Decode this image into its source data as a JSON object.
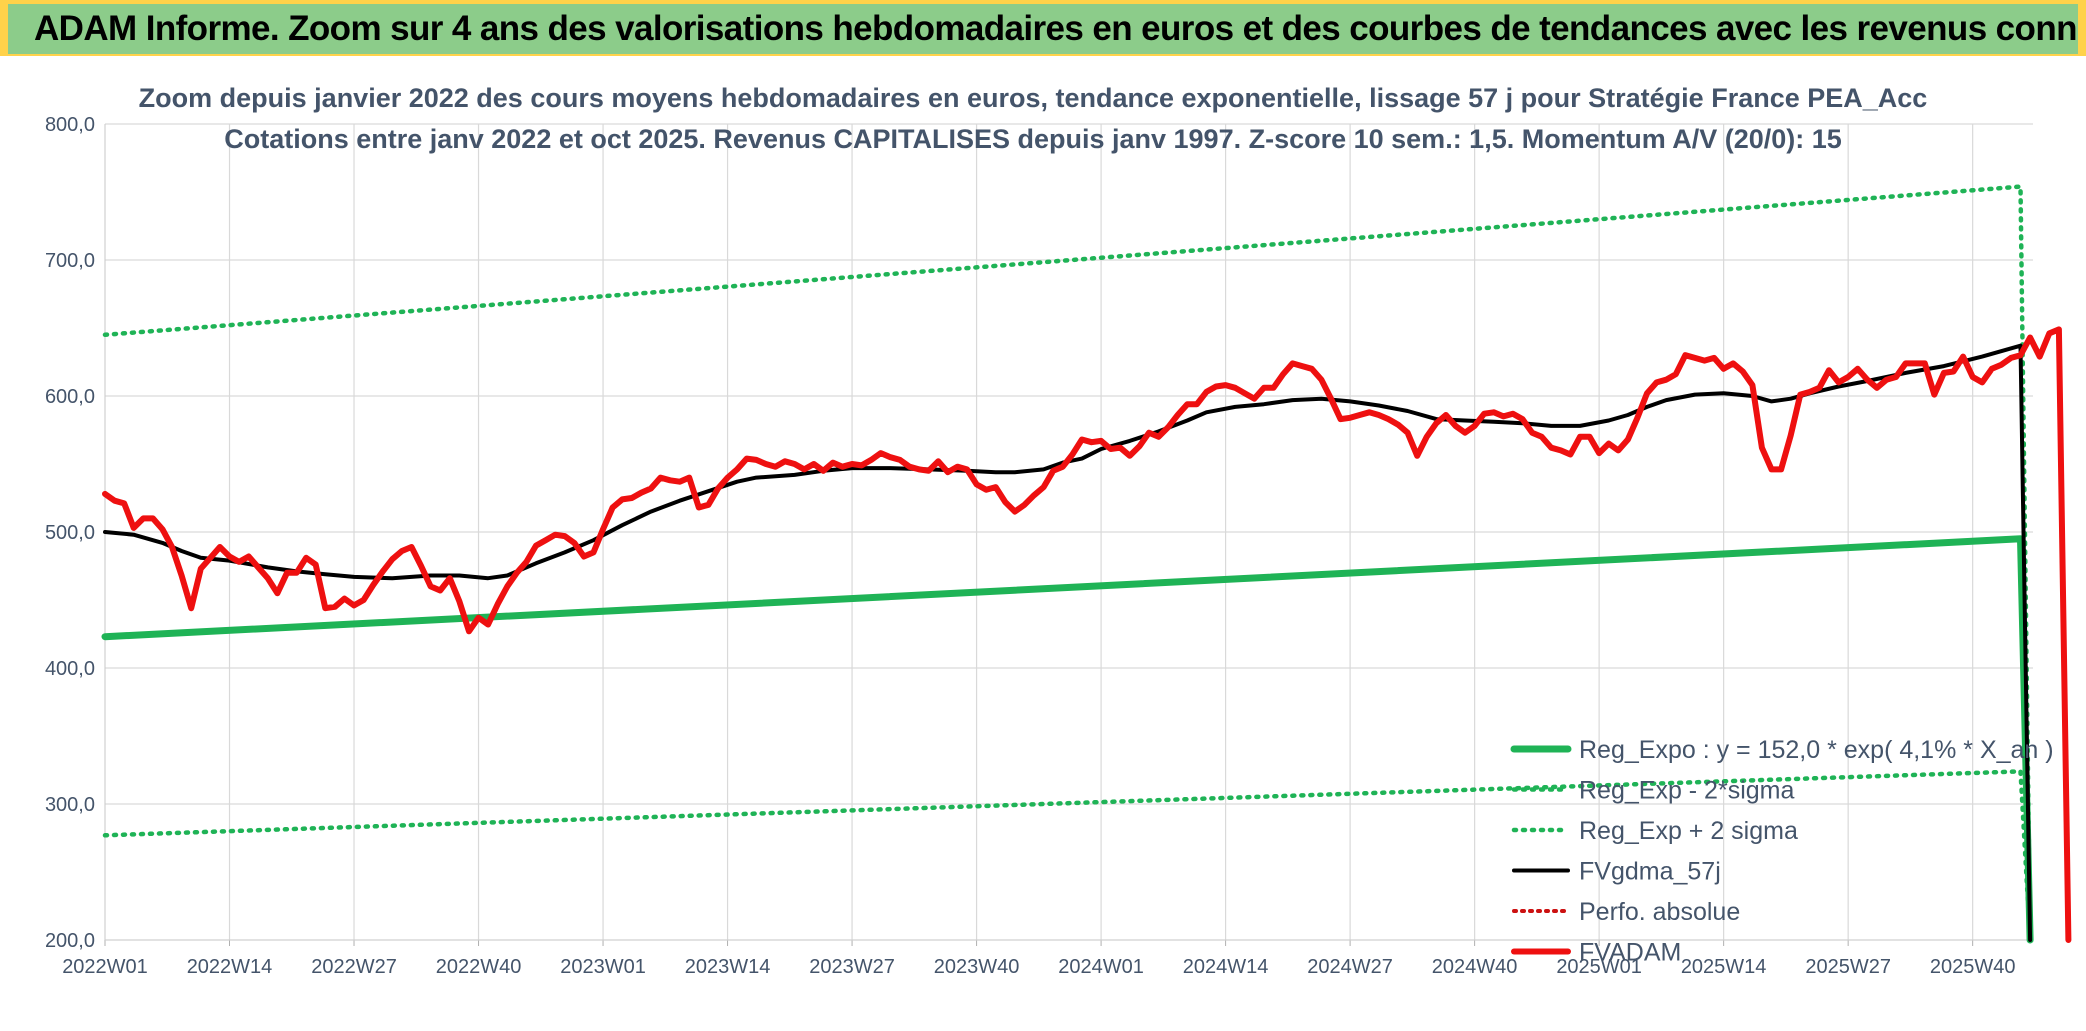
{
  "header": {
    "title": "ADAM Informe. Zoom sur 4 ans des valorisations hebdomadaires en euros et des courbes de tendances avec les revenus connus capitalisés"
  },
  "colors": {
    "header_bg": "#8ccc8a",
    "regression": "#1fb356",
    "band": "#1fb356",
    "moving_average": "#000000",
    "price": "#ee1010",
    "perf_absolue": "#cc1111",
    "gridline": "#d9d9d9",
    "text": "#44546a"
  },
  "chart_data": {
    "type": "line",
    "title": [
      "Zoom depuis janvier 2022 des cours moyens hebdomadaires en euros, tendance exponentielle, lissage 57 j pour Stratégie France PEA_Acc",
      "Cotations entre janv 2022 et oct 2025. Revenus CAPITALISES depuis janv 1997. Z-score 10 sem.: 1,5. Momentum A/V (20/0): 15"
    ],
    "ylim": [
      200,
      800
    ],
    "y_ticks": [
      "200,0",
      "300,0",
      "400,0",
      "500,0",
      "600,0",
      "700,0",
      "800,0"
    ],
    "x_ticks": [
      "2022W01",
      "2022W14",
      "2022W27",
      "2022W40",
      "2023W01",
      "2023W14",
      "2023W27",
      "2023W40",
      "2024W01",
      "2024W14",
      "2024W27",
      "2024W40",
      "2025W01",
      "2025W14",
      "2025W27",
      "2025W40"
    ],
    "x_tick_week_index": [
      0,
      13,
      26,
      39,
      52,
      65,
      78,
      91,
      104,
      117,
      130,
      143,
      156,
      169,
      182,
      195
    ],
    "x_range_weeks": [
      0,
      201
    ],
    "grid": true,
    "legend_position": "bottom-right",
    "series": [
      {
        "name": "Reg_Expo : y = 152,0 * exp( 4,1% *  X_an )",
        "style": "solid",
        "color": "#1fb356",
        "points": [
          [
            0,
            423
          ],
          [
            200,
            495
          ],
          [
            201,
            200
          ]
        ]
      },
      {
        "name": "Reg_Exp - 2*sigma",
        "style": "dotted",
        "color": "#1fb356",
        "points": [
          [
            0,
            277
          ],
          [
            200,
            324
          ],
          [
            201,
            200
          ]
        ]
      },
      {
        "name": "Reg_Exp + 2 sigma",
        "style": "dotted",
        "color": "#1fb356",
        "points": [
          [
            0,
            645
          ],
          [
            200,
            754
          ],
          [
            201,
            200
          ]
        ]
      },
      {
        "name": "FVgdma_57j",
        "style": "solid",
        "color": "#000000",
        "points": [
          [
            0,
            500
          ],
          [
            3,
            498
          ],
          [
            6,
            492
          ],
          [
            8,
            486
          ],
          [
            10,
            481
          ],
          [
            13,
            479
          ],
          [
            17,
            474
          ],
          [
            20,
            471
          ],
          [
            23,
            469
          ],
          [
            26,
            467
          ],
          [
            30,
            466
          ],
          [
            34,
            468
          ],
          [
            37,
            468
          ],
          [
            40,
            466
          ],
          [
            42,
            468
          ],
          [
            45,
            477
          ],
          [
            48,
            485
          ],
          [
            51,
            494
          ],
          [
            54,
            505
          ],
          [
            57,
            515
          ],
          [
            60,
            523
          ],
          [
            63,
            530
          ],
          [
            66,
            537
          ],
          [
            68,
            540
          ],
          [
            72,
            542
          ],
          [
            75,
            545
          ],
          [
            78,
            547
          ],
          [
            82,
            547
          ],
          [
            86,
            546
          ],
          [
            90,
            545
          ],
          [
            93,
            544
          ],
          [
            95,
            544
          ],
          [
            98,
            546
          ],
          [
            100,
            551
          ],
          [
            102,
            554
          ],
          [
            104,
            561
          ],
          [
            107,
            567
          ],
          [
            110,
            574
          ],
          [
            113,
            582
          ],
          [
            115,
            588
          ],
          [
            118,
            592
          ],
          [
            121,
            594
          ],
          [
            124,
            597
          ],
          [
            127,
            598
          ],
          [
            130,
            596
          ],
          [
            133,
            593
          ],
          [
            136,
            589
          ],
          [
            139,
            583
          ],
          [
            142,
            582
          ],
          [
            145,
            581
          ],
          [
            148,
            580
          ],
          [
            151,
            578
          ],
          [
            154,
            578
          ],
          [
            157,
            582
          ],
          [
            159,
            586
          ],
          [
            161,
            592
          ],
          [
            163,
            597
          ],
          [
            166,
            601
          ],
          [
            169,
            602
          ],
          [
            172,
            600
          ],
          [
            174,
            596
          ],
          [
            176,
            598
          ],
          [
            178,
            602
          ],
          [
            181,
            607
          ],
          [
            184,
            611
          ],
          [
            188,
            617
          ],
          [
            192,
            622
          ],
          [
            196,
            629
          ],
          [
            200,
            637
          ],
          [
            201,
            200
          ]
        ]
      },
      {
        "name": "Perfo. absolue",
        "style": "dotted",
        "color": "#cc1111",
        "points": []
      },
      {
        "name": "FVADAM",
        "style": "solid",
        "color": "#ee1010",
        "points": [
          [
            0,
            528
          ],
          [
            1,
            523
          ],
          [
            2,
            521
          ],
          [
            3,
            503
          ],
          [
            4,
            510
          ],
          [
            5,
            510
          ],
          [
            6,
            502
          ],
          [
            7,
            489
          ],
          [
            8,
            468
          ],
          [
            9,
            444
          ],
          [
            10,
            473
          ],
          [
            11,
            481
          ],
          [
            12,
            489
          ],
          [
            13,
            482
          ],
          [
            14,
            478
          ],
          [
            15,
            482
          ],
          [
            16,
            474
          ],
          [
            17,
            466
          ],
          [
            18,
            455
          ],
          [
            19,
            470
          ],
          [
            20,
            470
          ],
          [
            21,
            481
          ],
          [
            22,
            476
          ],
          [
            23,
            444
          ],
          [
            24,
            445
          ],
          [
            25,
            451
          ],
          [
            26,
            446
          ],
          [
            27,
            450
          ],
          [
            28,
            461
          ],
          [
            29,
            471
          ],
          [
            30,
            480
          ],
          [
            31,
            486
          ],
          [
            32,
            489
          ],
          [
            33,
            475
          ],
          [
            34,
            460
          ],
          [
            35,
            457
          ],
          [
            36,
            466
          ],
          [
            37,
            449
          ],
          [
            38,
            427
          ],
          [
            39,
            437
          ],
          [
            40,
            432
          ],
          [
            41,
            447
          ],
          [
            42,
            460
          ],
          [
            43,
            470
          ],
          [
            44,
            478
          ],
          [
            45,
            490
          ],
          [
            46,
            494
          ],
          [
            47,
            498
          ],
          [
            48,
            497
          ],
          [
            49,
            492
          ],
          [
            50,
            482
          ],
          [
            51,
            485
          ],
          [
            52,
            502
          ],
          [
            53,
            518
          ],
          [
            54,
            524
          ],
          [
            55,
            525
          ],
          [
            56,
            529
          ],
          [
            57,
            532
          ],
          [
            58,
            540
          ],
          [
            59,
            538
          ],
          [
            60,
            537
          ],
          [
            61,
            540
          ],
          [
            62,
            518
          ],
          [
            63,
            520
          ],
          [
            64,
            532
          ],
          [
            65,
            540
          ],
          [
            66,
            546
          ],
          [
            67,
            554
          ],
          [
            68,
            553
          ],
          [
            69,
            550
          ],
          [
            70,
            548
          ],
          [
            71,
            552
          ],
          [
            72,
            550
          ],
          [
            73,
            546
          ],
          [
            74,
            550
          ],
          [
            75,
            545
          ],
          [
            76,
            551
          ],
          [
            77,
            548
          ],
          [
            78,
            550
          ],
          [
            79,
            549
          ],
          [
            80,
            553
          ],
          [
            81,
            558
          ],
          [
            82,
            555
          ],
          [
            83,
            553
          ],
          [
            84,
            548
          ],
          [
            85,
            546
          ],
          [
            86,
            545
          ],
          [
            87,
            552
          ],
          [
            88,
            544
          ],
          [
            89,
            548
          ],
          [
            90,
            546
          ],
          [
            91,
            535
          ],
          [
            92,
            531
          ],
          [
            93,
            533
          ],
          [
            94,
            522
          ],
          [
            95,
            515
          ],
          [
            96,
            520
          ],
          [
            97,
            527
          ],
          [
            98,
            533
          ],
          [
            99,
            545
          ],
          [
            100,
            548
          ],
          [
            101,
            557
          ],
          [
            102,
            568
          ],
          [
            103,
            566
          ],
          [
            104,
            567
          ],
          [
            105,
            561
          ],
          [
            106,
            562
          ],
          [
            107,
            556
          ],
          [
            108,
            563
          ],
          [
            109,
            573
          ],
          [
            110,
            570
          ],
          [
            111,
            577
          ],
          [
            112,
            586
          ],
          [
            113,
            594
          ],
          [
            114,
            594
          ],
          [
            115,
            603
          ],
          [
            116,
            607
          ],
          [
            117,
            608
          ],
          [
            118,
            606
          ],
          [
            119,
            602
          ],
          [
            120,
            598
          ],
          [
            121,
            606
          ],
          [
            122,
            606
          ],
          [
            123,
            616
          ],
          [
            124,
            624
          ],
          [
            125,
            622
          ],
          [
            126,
            620
          ],
          [
            127,
            612
          ],
          [
            128,
            598
          ],
          [
            129,
            583
          ],
          [
            130,
            584
          ],
          [
            131,
            586
          ],
          [
            132,
            588
          ],
          [
            133,
            586
          ],
          [
            134,
            583
          ],
          [
            135,
            579
          ],
          [
            136,
            573
          ],
          [
            137,
            556
          ],
          [
            138,
            570
          ],
          [
            139,
            580
          ],
          [
            140,
            586
          ],
          [
            141,
            578
          ],
          [
            142,
            573
          ],
          [
            143,
            578
          ],
          [
            144,
            587
          ],
          [
            145,
            588
          ],
          [
            146,
            585
          ],
          [
            147,
            587
          ],
          [
            148,
            583
          ],
          [
            149,
            573
          ],
          [
            150,
            570
          ],
          [
            151,
            562
          ],
          [
            152,
            560
          ],
          [
            153,
            557
          ],
          [
            154,
            570
          ],
          [
            155,
            570
          ],
          [
            156,
            558
          ],
          [
            157,
            565
          ],
          [
            158,
            560
          ],
          [
            159,
            568
          ],
          [
            160,
            584
          ],
          [
            161,
            602
          ],
          [
            162,
            610
          ],
          [
            163,
            612
          ],
          [
            164,
            616
          ],
          [
            165,
            630
          ],
          [
            166,
            628
          ],
          [
            167,
            626
          ],
          [
            168,
            628
          ],
          [
            169,
            620
          ],
          [
            170,
            624
          ],
          [
            171,
            618
          ],
          [
            172,
            608
          ],
          [
            173,
            562
          ],
          [
            174,
            546
          ],
          [
            175,
            546
          ],
          [
            176,
            571
          ],
          [
            177,
            601
          ],
          [
            178,
            603
          ],
          [
            179,
            606
          ],
          [
            180,
            619
          ],
          [
            181,
            610
          ],
          [
            182,
            614
          ],
          [
            183,
            620
          ],
          [
            184,
            612
          ],
          [
            185,
            606
          ],
          [
            186,
            612
          ],
          [
            187,
            614
          ],
          [
            188,
            624
          ],
          [
            189,
            624
          ],
          [
            190,
            624
          ],
          [
            191,
            601
          ],
          [
            192,
            617
          ],
          [
            193,
            618
          ],
          [
            194,
            629
          ],
          [
            195,
            614
          ],
          [
            196,
            610
          ],
          [
            197,
            620
          ],
          [
            198,
            623
          ],
          [
            199,
            628
          ],
          [
            200,
            630
          ],
          [
            201,
            643
          ],
          [
            202,
            629
          ],
          [
            203,
            646
          ],
          [
            204,
            649
          ],
          [
            205,
            200
          ]
        ]
      }
    ]
  }
}
